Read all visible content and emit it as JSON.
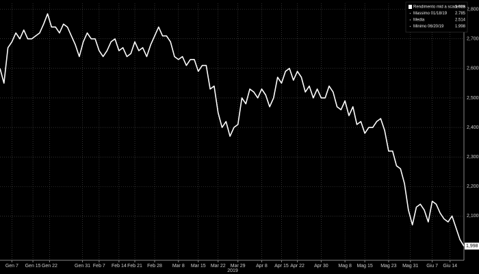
{
  "chart_data": {
    "type": "line",
    "x_label": "2019",
    "series": [
      {
        "name": "Rendimento mid a scadenza",
        "color": "#ffffff",
        "values": [
          2.6,
          2.55,
          2.67,
          2.69,
          2.72,
          2.7,
          2.73,
          2.7,
          2.7,
          2.71,
          2.72,
          2.75,
          2.785,
          2.74,
          2.74,
          2.72,
          2.75,
          2.74,
          2.71,
          2.68,
          2.64,
          2.69,
          2.72,
          2.7,
          2.7,
          2.66,
          2.64,
          2.66,
          2.69,
          2.7,
          2.66,
          2.67,
          2.64,
          2.65,
          2.69,
          2.66,
          2.67,
          2.64,
          2.68,
          2.71,
          2.74,
          2.71,
          2.71,
          2.69,
          2.64,
          2.63,
          2.64,
          2.61,
          2.63,
          2.63,
          2.59,
          2.61,
          2.61,
          2.53,
          2.54,
          2.45,
          2.4,
          2.42,
          2.37,
          2.4,
          2.41,
          2.5,
          2.48,
          2.53,
          2.52,
          2.5,
          2.53,
          2.51,
          2.47,
          2.5,
          2.57,
          2.55,
          2.59,
          2.6,
          2.56,
          2.59,
          2.57,
          2.52,
          2.54,
          2.5,
          2.53,
          2.5,
          2.5,
          2.54,
          2.52,
          2.47,
          2.46,
          2.49,
          2.44,
          2.47,
          2.41,
          2.42,
          2.38,
          2.4,
          2.4,
          2.42,
          2.43,
          2.39,
          2.32,
          2.32,
          2.27,
          2.26,
          2.21,
          2.12,
          2.07,
          2.13,
          2.14,
          2.12,
          2.08,
          2.15,
          2.14,
          2.11,
          2.09,
          2.08,
          2.1,
          2.06,
          2.02,
          1.998
        ],
        "last_value_label": "1,998"
      }
    ],
    "stats": [
      {
        "name": "Massimo 01/18/19",
        "value": 2.785
      },
      {
        "name": "Media",
        "value": 2.514
      },
      {
        "name": "Minimo 06/20/19",
        "value": 1.998
      }
    ],
    "xlim": [
      0,
      117
    ],
    "xticks": [
      {
        "value": 3,
        "label": "Gen 7"
      },
      {
        "value": 8.3,
        "label": "Gen 15"
      },
      {
        "value": 12.5,
        "label": "Gen 22"
      },
      {
        "value": 20.8,
        "label": "Gen 31"
      },
      {
        "value": 25,
        "label": "Feb 7"
      },
      {
        "value": 30,
        "label": "Feb 14"
      },
      {
        "value": 34,
        "label": "Feb 21"
      },
      {
        "value": 39,
        "label": "Feb 28"
      },
      {
        "value": 45,
        "label": "Mar 8"
      },
      {
        "value": 50,
        "label": "Mar 15"
      },
      {
        "value": 55,
        "label": "Mar 22"
      },
      {
        "value": 60,
        "label": "Mar 29"
      },
      {
        "value": 66,
        "label": "Apr 8"
      },
      {
        "value": 71,
        "label": "Apr 15"
      },
      {
        "value": 75,
        "label": "Apr 22"
      },
      {
        "value": 81,
        "label": "Apr 30"
      },
      {
        "value": 87,
        "label": "Mag 8"
      },
      {
        "value": 92,
        "label": "Mag 15"
      },
      {
        "value": 98,
        "label": "Mag 23"
      },
      {
        "value": 103.5,
        "label": "Mag 31"
      },
      {
        "value": 109,
        "label": "Giu 7"
      },
      {
        "value": 113.5,
        "label": "Giu 14"
      }
    ],
    "ylim": [
      1.95,
      2.82
    ],
    "yticks": [
      {
        "value": 2.1,
        "label": "2,100"
      },
      {
        "value": 2.2,
        "label": "2,200"
      },
      {
        "value": 2.3,
        "label": "2,300"
      },
      {
        "value": 2.4,
        "label": "2,400"
      },
      {
        "value": 2.5,
        "label": "2,500"
      },
      {
        "value": 2.6,
        "label": "2,600"
      },
      {
        "value": 2.7,
        "label": "2,700"
      },
      {
        "value": 2.8,
        "label": "2,800"
      }
    ],
    "grid": true
  }
}
